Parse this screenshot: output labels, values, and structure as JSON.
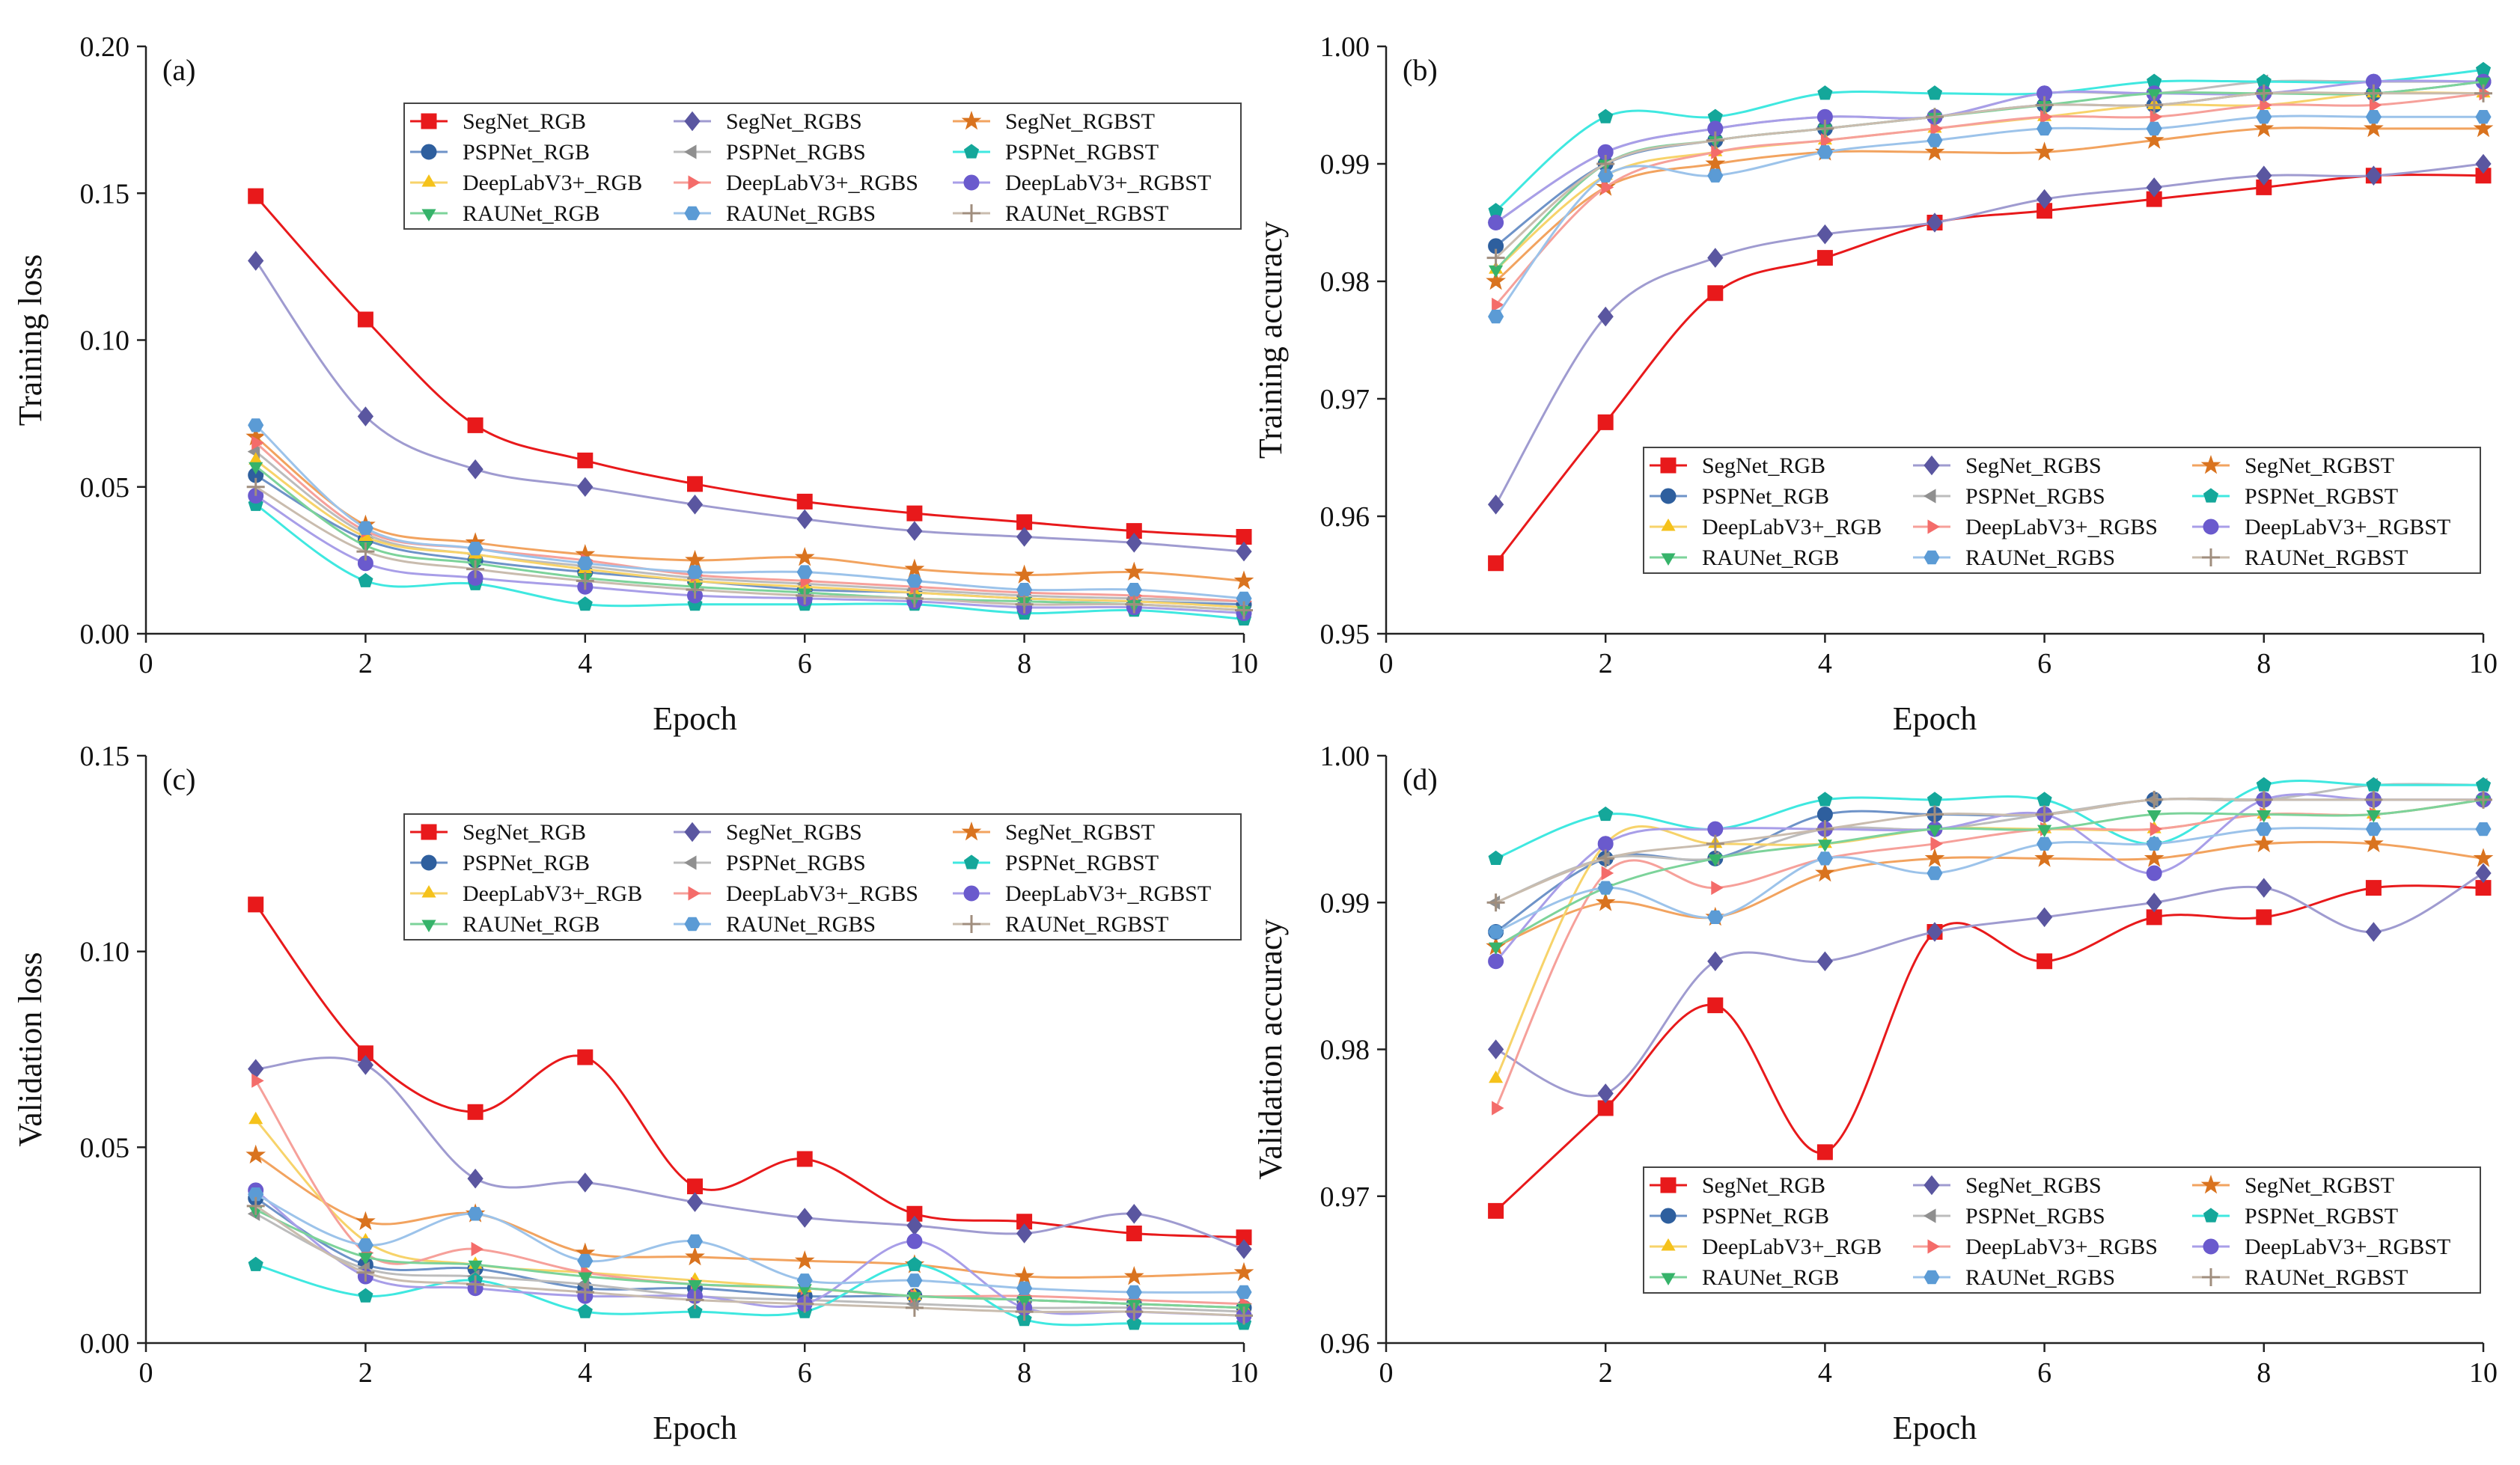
{
  "figure": {
    "series_styles": {
      "SegNet_RGB": {
        "color": "#e8191b",
        "marker": "square"
      },
      "SegNet_RGBS": {
        "color": "#5a56a0",
        "marker": "diamond"
      },
      "SegNet_RGBST": {
        "color": "#d9731f",
        "marker": "star"
      },
      "PSPNet_RGB": {
        "color": "#2e5f9e",
        "marker": "circle"
      },
      "PSPNet_RGBS": {
        "color": "#8f8f8f",
        "marker": "triangle-left"
      },
      "PSPNet_RGBST": {
        "color": "#14a79a",
        "marker": "pentagon"
      },
      "DeepLabV3+_RGB": {
        "color": "#f5c21b",
        "marker": "triangle-up"
      },
      "DeepLabV3+_RGBS": {
        "color": "#f46c6a",
        "marker": "triangle-right"
      },
      "DeepLabV3+_RGBST": {
        "color": "#6a5acd",
        "marker": "circle"
      },
      "RAUNet_RGB": {
        "color": "#36b36a",
        "marker": "triangle-down"
      },
      "RAUNet_RGBS": {
        "color": "#5b9bd5",
        "marker": "hexagon"
      },
      "RAUNet_RGBST": {
        "color": "#a08e7e",
        "marker": "plus"
      }
    },
    "line_colors": {
      "SegNet_RGB": "#e8191b",
      "SegNet_RGBS": "#9f9bd0",
      "SegNet_RGBST": "#f2a35f",
      "PSPNet_RGB": "#6e93c8",
      "PSPNet_RGBS": "#bcbcbc",
      "PSPNet_RGBST": "#3fe8e0",
      "DeepLabV3+_RGB": "#f7d36a",
      "DeepLabV3+_RGBS": "#f6a09a",
      "DeepLabV3+_RGBST": "#a89ee8",
      "RAUNet_RGB": "#7cd39a",
      "RAUNet_RGBS": "#9cc3ea",
      "RAUNet_RGBST": "#c9bcae"
    }
  },
  "chart_data": [
    {
      "type": "line",
      "panel_label": "(a)",
      "title": "",
      "xlabel": "Epoch",
      "ylabel": "Training loss",
      "xlim": [
        0,
        10
      ],
      "ylim": [
        0,
        0.2
      ],
      "x_ticks": [
        "0",
        "2",
        "4",
        "6",
        "8",
        "10"
      ],
      "y_ticks": [
        "0.00",
        "0.05",
        "0.10",
        "0.15",
        "0.20"
      ],
      "legend_position": "top-right",
      "x": [
        1,
        2,
        3,
        4,
        5,
        6,
        7,
        8,
        9,
        10
      ],
      "series": [
        {
          "name": "SegNet_RGB",
          "values": [
            0.149,
            0.107,
            0.071,
            0.059,
            0.051,
            0.045,
            0.041,
            0.038,
            0.035,
            0.033
          ]
        },
        {
          "name": "SegNet_RGBS",
          "values": [
            0.127,
            0.074,
            0.056,
            0.05,
            0.044,
            0.039,
            0.035,
            0.033,
            0.031,
            0.028
          ]
        },
        {
          "name": "SegNet_RGBST",
          "values": [
            0.067,
            0.037,
            0.031,
            0.027,
            0.025,
            0.026,
            0.022,
            0.02,
            0.021,
            0.018
          ]
        },
        {
          "name": "PSPNet_RGB",
          "values": [
            0.054,
            0.032,
            0.025,
            0.021,
            0.018,
            0.015,
            0.014,
            0.012,
            0.011,
            0.01
          ]
        },
        {
          "name": "PSPNet_RGBS",
          "values": [
            0.062,
            0.034,
            0.027,
            0.023,
            0.019,
            0.017,
            0.015,
            0.013,
            0.012,
            0.011
          ]
        },
        {
          "name": "PSPNet_RGBST",
          "values": [
            0.044,
            0.018,
            0.017,
            0.01,
            0.01,
            0.01,
            0.01,
            0.007,
            0.008,
            0.005
          ]
        },
        {
          "name": "DeepLabV3+_RGB",
          "values": [
            0.059,
            0.033,
            0.027,
            0.022,
            0.018,
            0.016,
            0.014,
            0.012,
            0.011,
            0.009
          ]
        },
        {
          "name": "DeepLabV3+_RGBS",
          "values": [
            0.065,
            0.035,
            0.029,
            0.025,
            0.02,
            0.018,
            0.016,
            0.014,
            0.013,
            0.011
          ]
        },
        {
          "name": "DeepLabV3+_RGBST",
          "values": [
            0.047,
            0.024,
            0.019,
            0.016,
            0.013,
            0.012,
            0.011,
            0.009,
            0.009,
            0.007
          ]
        },
        {
          "name": "RAUNet_RGB",
          "values": [
            0.057,
            0.03,
            0.024,
            0.019,
            0.016,
            0.014,
            0.012,
            0.011,
            0.01,
            0.008
          ]
        },
        {
          "name": "RAUNet_RGBS",
          "values": [
            0.071,
            0.036,
            0.029,
            0.024,
            0.021,
            0.021,
            0.018,
            0.015,
            0.015,
            0.012
          ]
        },
        {
          "name": "RAUNet_RGBST",
          "values": [
            0.05,
            0.028,
            0.022,
            0.018,
            0.015,
            0.013,
            0.012,
            0.01,
            0.01,
            0.008
          ]
        }
      ]
    },
    {
      "type": "line",
      "panel_label": "(b)",
      "title": "",
      "xlabel": "Epoch",
      "ylabel": "Training accuracy",
      "xlim": [
        0,
        10
      ],
      "ylim": [
        0.95,
        1.0
      ],
      "x_ticks": [
        "0",
        "2",
        "4",
        "6",
        "8",
        "10"
      ],
      "y_ticks": [
        "0.95",
        "0.96",
        "0.97",
        "0.98",
        "0.99",
        "1.00"
      ],
      "legend_position": "bottom-right",
      "x": [
        1,
        2,
        3,
        4,
        5,
        6,
        7,
        8,
        9,
        10
      ],
      "series": [
        {
          "name": "SegNet_RGB",
          "values": [
            0.956,
            0.968,
            0.979,
            0.982,
            0.985,
            0.986,
            0.987,
            0.988,
            0.989,
            0.989
          ]
        },
        {
          "name": "SegNet_RGBS",
          "values": [
            0.961,
            0.977,
            0.982,
            0.984,
            0.985,
            0.987,
            0.988,
            0.989,
            0.989,
            0.99
          ]
        },
        {
          "name": "SegNet_RGBST",
          "values": [
            0.98,
            0.988,
            0.99,
            0.991,
            0.991,
            0.991,
            0.992,
            0.993,
            0.993,
            0.993
          ]
        },
        {
          "name": "PSPNet_RGB",
          "values": [
            0.983,
            0.99,
            0.992,
            0.993,
            0.994,
            0.995,
            0.995,
            0.996,
            0.996,
            0.997
          ]
        },
        {
          "name": "PSPNet_RGBS",
          "values": [
            0.985,
            0.991,
            0.993,
            0.994,
            0.994,
            0.996,
            0.996,
            0.997,
            0.997,
            0.997
          ]
        },
        {
          "name": "PSPNet_RGBST",
          "values": [
            0.986,
            0.994,
            0.994,
            0.996,
            0.996,
            0.996,
            0.997,
            0.997,
            0.997,
            0.998
          ]
        },
        {
          "name": "DeepLabV3+_RGB",
          "values": [
            0.981,
            0.989,
            0.991,
            0.992,
            0.993,
            0.994,
            0.995,
            0.995,
            0.996,
            0.996
          ]
        },
        {
          "name": "DeepLabV3+_RGBS",
          "values": [
            0.978,
            0.988,
            0.991,
            0.992,
            0.993,
            0.994,
            0.994,
            0.995,
            0.995,
            0.996
          ]
        },
        {
          "name": "DeepLabV3+_RGBST",
          "values": [
            0.985,
            0.991,
            0.993,
            0.994,
            0.994,
            0.996,
            0.996,
            0.996,
            0.997,
            0.997
          ]
        },
        {
          "name": "RAUNet_RGB",
          "values": [
            0.981,
            0.99,
            0.992,
            0.993,
            0.994,
            0.995,
            0.996,
            0.996,
            0.996,
            0.997
          ]
        },
        {
          "name": "RAUNet_RGBS",
          "values": [
            0.977,
            0.989,
            0.989,
            0.991,
            0.992,
            0.993,
            0.993,
            0.994,
            0.994,
            0.994
          ]
        },
        {
          "name": "RAUNet_RGBST",
          "values": [
            0.982,
            0.99,
            0.992,
            0.993,
            0.994,
            0.995,
            0.995,
            0.996,
            0.996,
            0.996
          ]
        }
      ]
    },
    {
      "type": "line",
      "panel_label": "(c)",
      "title": "",
      "xlabel": "Epoch",
      "ylabel": "Validation loss",
      "xlim": [
        0,
        10
      ],
      "ylim": [
        0,
        0.15
      ],
      "x_ticks": [
        "0",
        "2",
        "4",
        "6",
        "8",
        "10"
      ],
      "y_ticks": [
        "0.00",
        "0.05",
        "0.10",
        "0.15"
      ],
      "legend_position": "top-right",
      "x": [
        1,
        2,
        3,
        4,
        5,
        6,
        7,
        8,
        9,
        10
      ],
      "series": [
        {
          "name": "SegNet_RGB",
          "values": [
            0.112,
            0.074,
            0.059,
            0.073,
            0.04,
            0.047,
            0.033,
            0.031,
            0.028,
            0.027
          ]
        },
        {
          "name": "SegNet_RGBS",
          "values": [
            0.07,
            0.071,
            0.042,
            0.041,
            0.036,
            0.032,
            0.03,
            0.028,
            0.033,
            0.024
          ]
        },
        {
          "name": "SegNet_RGBST",
          "values": [
            0.048,
            0.031,
            0.033,
            0.023,
            0.022,
            0.021,
            0.02,
            0.017,
            0.017,
            0.018
          ]
        },
        {
          "name": "PSPNet_RGB",
          "values": [
            0.037,
            0.02,
            0.019,
            0.014,
            0.014,
            0.012,
            0.012,
            0.011,
            0.01,
            0.009
          ]
        },
        {
          "name": "PSPNet_RGBS",
          "values": [
            0.033,
            0.019,
            0.017,
            0.015,
            0.012,
            0.011,
            0.01,
            0.009,
            0.009,
            0.008
          ]
        },
        {
          "name": "PSPNet_RGBST",
          "values": [
            0.02,
            0.012,
            0.016,
            0.008,
            0.008,
            0.008,
            0.02,
            0.006,
            0.005,
            0.005
          ]
        },
        {
          "name": "DeepLabV3+_RGB",
          "values": [
            0.057,
            0.026,
            0.02,
            0.018,
            0.016,
            0.014,
            0.012,
            0.011,
            0.01,
            0.009
          ]
        },
        {
          "name": "DeepLabV3+_RGBS",
          "values": [
            0.067,
            0.023,
            0.024,
            0.018,
            0.015,
            0.014,
            0.012,
            0.012,
            0.011,
            0.01
          ]
        },
        {
          "name": "DeepLabV3+_RGBST",
          "values": [
            0.039,
            0.017,
            0.014,
            0.012,
            0.012,
            0.01,
            0.026,
            0.009,
            0.008,
            0.007
          ]
        },
        {
          "name": "RAUNet_RGB",
          "values": [
            0.034,
            0.022,
            0.02,
            0.017,
            0.015,
            0.014,
            0.012,
            0.011,
            0.01,
            0.009
          ]
        },
        {
          "name": "RAUNet_RGBS",
          "values": [
            0.038,
            0.025,
            0.033,
            0.021,
            0.026,
            0.016,
            0.016,
            0.014,
            0.013,
            0.013
          ]
        },
        {
          "name": "RAUNet_RGBST",
          "values": [
            0.035,
            0.018,
            0.015,
            0.013,
            0.011,
            0.01,
            0.009,
            0.008,
            0.008,
            0.007
          ]
        }
      ]
    },
    {
      "type": "line",
      "panel_label": "(d)",
      "title": "",
      "xlabel": "Epoch",
      "ylabel": "Validation accuracy",
      "xlim": [
        0,
        10
      ],
      "ylim": [
        0.96,
        1.0
      ],
      "x_ticks": [
        "0",
        "2",
        "4",
        "6",
        "8",
        "10"
      ],
      "y_ticks": [
        "0.96",
        "0.97",
        "0.98",
        "0.99",
        "1.00"
      ],
      "legend_position": "bottom-right",
      "x": [
        1,
        2,
        3,
        4,
        5,
        6,
        7,
        8,
        9,
        10
      ],
      "series": [
        {
          "name": "SegNet_RGB",
          "values": [
            0.969,
            0.976,
            0.983,
            0.973,
            0.988,
            0.986,
            0.989,
            0.989,
            0.991,
            0.991
          ]
        },
        {
          "name": "SegNet_RGBS",
          "values": [
            0.98,
            0.977,
            0.986,
            0.986,
            0.988,
            0.989,
            0.99,
            0.991,
            0.988,
            0.992
          ]
        },
        {
          "name": "SegNet_RGBST",
          "values": [
            0.987,
            0.99,
            0.989,
            0.992,
            0.993,
            0.993,
            0.993,
            0.994,
            0.994,
            0.993
          ]
        },
        {
          "name": "PSPNet_RGB",
          "values": [
            0.988,
            0.993,
            0.993,
            0.996,
            0.996,
            0.996,
            0.997,
            0.997,
            0.997,
            0.997
          ]
        },
        {
          "name": "PSPNet_RGBS",
          "values": [
            0.99,
            0.993,
            0.993,
            0.995,
            0.995,
            0.996,
            0.997,
            0.997,
            0.998,
            0.998
          ]
        },
        {
          "name": "PSPNet_RGBST",
          "values": [
            0.993,
            0.996,
            0.995,
            0.997,
            0.997,
            0.997,
            0.994,
            0.998,
            0.998,
            0.998
          ]
        },
        {
          "name": "DeepLabV3+_RGB",
          "values": [
            0.978,
            0.994,
            0.994,
            0.994,
            0.995,
            0.995,
            0.995,
            0.996,
            0.996,
            0.997
          ]
        },
        {
          "name": "DeepLabV3+_RGBS",
          "values": [
            0.976,
            0.992,
            0.991,
            0.993,
            0.994,
            0.995,
            0.995,
            0.996,
            0.996,
            0.997
          ]
        },
        {
          "name": "DeepLabV3+_RGBST",
          "values": [
            0.986,
            0.994,
            0.995,
            0.995,
            0.995,
            0.996,
            0.992,
            0.997,
            0.997,
            0.997
          ]
        },
        {
          "name": "RAUNet_RGB",
          "values": [
            0.987,
            0.991,
            0.993,
            0.994,
            0.995,
            0.995,
            0.996,
            0.996,
            0.996,
            0.997
          ]
        },
        {
          "name": "RAUNet_RGBS",
          "values": [
            0.988,
            0.991,
            0.989,
            0.993,
            0.992,
            0.994,
            0.994,
            0.995,
            0.995,
            0.995
          ]
        },
        {
          "name": "RAUNet_RGBST",
          "values": [
            0.99,
            0.993,
            0.994,
            0.995,
            0.996,
            0.996,
            0.997,
            0.997,
            0.997,
            0.997
          ]
        }
      ]
    }
  ]
}
